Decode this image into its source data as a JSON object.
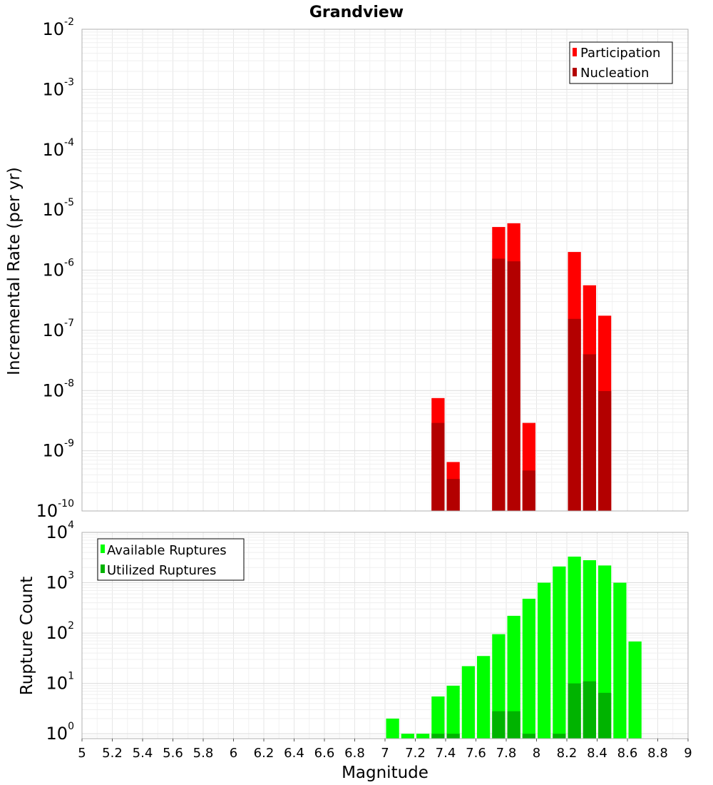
{
  "chart_data": [
    {
      "type": "bar",
      "name": "rate-panel",
      "title": "Grandview",
      "xlabel": "",
      "ylabel": "Incremental Rate (per yr)",
      "yscale": "log",
      "ylim": [
        1e-10,
        0.01
      ],
      "xlim": [
        5,
        9
      ],
      "bin_width": 0.1,
      "ytick_labels": [
        {
          "base": "10",
          "exp": "-10"
        },
        {
          "base": "10",
          "exp": "-9"
        },
        {
          "base": "10",
          "exp": "-8"
        },
        {
          "base": "10",
          "exp": "-7"
        },
        {
          "base": "10",
          "exp": "-6"
        },
        {
          "base": "10",
          "exp": "-5"
        },
        {
          "base": "10",
          "exp": "-4"
        },
        {
          "base": "10",
          "exp": "-3"
        },
        {
          "base": "10",
          "exp": "-2"
        }
      ],
      "legend_position": "top-right",
      "series": [
        {
          "name": "Participation",
          "color": "#ff0000",
          "x": [
            7.35,
            7.45,
            7.75,
            7.85,
            7.95,
            8.25,
            8.35,
            8.45
          ],
          "values": [
            7.5e-09,
            6.5e-10,
            5.2e-06,
            6e-06,
            2.9e-09,
            2e-06,
            5.6e-07,
            1.75e-07
          ]
        },
        {
          "name": "Nucleation",
          "color": "#b30000",
          "x": [
            7.35,
            7.45,
            7.75,
            7.85,
            7.95,
            8.25,
            8.35,
            8.45
          ],
          "values": [
            2.9e-09,
            3.4e-10,
            1.55e-06,
            1.4e-06,
            4.7e-10,
            1.55e-07,
            4e-08,
            9.8e-09
          ]
        }
      ]
    },
    {
      "type": "bar",
      "name": "count-panel",
      "xlabel": "Magnitude",
      "ylabel": "Rupture Count",
      "yscale": "log",
      "ylim": [
        0.8,
        10000
      ],
      "xlim": [
        5,
        9
      ],
      "bin_width": 0.1,
      "ytick_labels": [
        {
          "base": "10",
          "exp": "0"
        },
        {
          "base": "10",
          "exp": "1"
        },
        {
          "base": "10",
          "exp": "2"
        },
        {
          "base": "10",
          "exp": "3"
        },
        {
          "base": "10",
          "exp": "4"
        }
      ],
      "xtick_labels": [
        "5",
        "5.2",
        "5.4",
        "5.6",
        "5.8",
        "6",
        "6.2",
        "6.4",
        "6.6",
        "6.8",
        "7",
        "7.2",
        "7.4",
        "7.6",
        "7.8",
        "8",
        "8.2",
        "8.4",
        "8.6",
        "8.8",
        "9"
      ],
      "legend_position": "top-left",
      "series": [
        {
          "name": "Available Ruptures",
          "color": "#00ff00",
          "x": [
            7.05,
            7.15,
            7.25,
            7.35,
            7.45,
            7.55,
            7.65,
            7.75,
            7.85,
            7.95,
            8.05,
            8.15,
            8.25,
            8.35,
            8.45,
            8.55,
            8.65
          ],
          "values": [
            2,
            1,
            1,
            5.5,
            9,
            22,
            35,
            95,
            220,
            480,
            1000,
            2100,
            3300,
            2800,
            2200,
            1000,
            68
          ]
        },
        {
          "name": "Utilized Ruptures",
          "color": "#00b300",
          "x": [
            7.35,
            7.45,
            7.75,
            7.85,
            7.95,
            8.15,
            8.25,
            8.35,
            8.45
          ],
          "values": [
            1,
            1,
            2.8,
            2.8,
            1,
            1,
            10,
            11,
            6.5
          ]
        }
      ]
    }
  ]
}
